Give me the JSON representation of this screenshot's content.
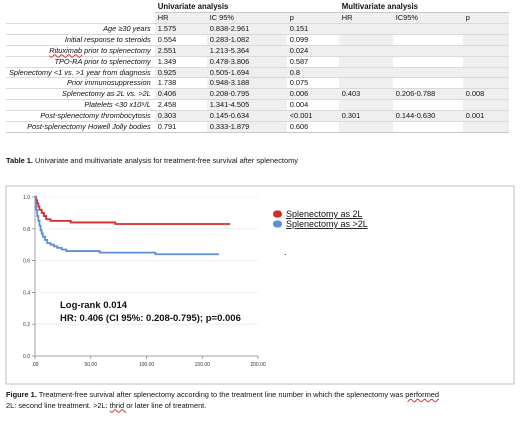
{
  "table": {
    "group_univariate": "Univariate analysis",
    "group_multivariate": "Multivariate analysis",
    "headers": [
      "HR",
      "IC 95%",
      "p",
      "HR",
      "IC95%",
      "p"
    ],
    "rows": [
      {
        "variable": "Age ≥30 years",
        "u_hr": "1.575",
        "u_ci": "0.838-2.961",
        "u_p": "0.151",
        "m_hr": "",
        "m_ci": "",
        "m_p": ""
      },
      {
        "variable": "Initial response to steroids",
        "u_hr": "0.554",
        "u_ci": "0.283-1.082",
        "u_p": "0.099",
        "m_hr": "",
        "m_ci": "",
        "m_p": ""
      },
      {
        "variable": "Rituximab prior to splenectomy",
        "u_hr": "2.551",
        "u_ci": "1.213-5.364",
        "u_p": "0.024",
        "m_hr": "",
        "m_ci": "",
        "m_p": ""
      },
      {
        "variable": "TPO-RA prior to splenectomy",
        "u_hr": "1.349",
        "u_ci": "0.478-3.806",
        "u_p": "0.587",
        "m_hr": "",
        "m_ci": "",
        "m_p": ""
      },
      {
        "variable": "Splenectomy <1 vs. >1 year from diagnosis",
        "u_hr": "0.925",
        "u_ci": "0.505-1.694",
        "u_p": "0.8",
        "m_hr": "",
        "m_ci": "",
        "m_p": ""
      },
      {
        "variable": "Prior immunosuppression",
        "u_hr": "1.738",
        "u_ci": "0.948-3.188",
        "u_p": "0.075",
        "m_hr": "",
        "m_ci": "",
        "m_p": ""
      },
      {
        "variable": "Splenectomy as 2L vs. >2L",
        "u_hr": "0.406",
        "u_ci": "0.208-0.795",
        "u_p": "0.006",
        "m_hr": "0.403",
        "m_ci": "0.206-0.788",
        "m_p": "0.008"
      },
      {
        "variable": "Platelets <30 x10⁹/L",
        "u_hr": "2.458",
        "u_ci": "1.341-4.505",
        "u_p": "0.004",
        "m_hr": "",
        "m_ci": "",
        "m_p": ""
      },
      {
        "variable": "Post-splenectomy thrombocytosis",
        "u_hr": "0.303",
        "u_ci": "0.145-0.634",
        "u_p": "<0.001",
        "m_hr": "0.301",
        "m_ci": "0.144-0.630",
        "m_p": "0.001"
      },
      {
        "variable": "Post-splenectomy Howell Jolly bodies",
        "u_hr": "0.791",
        "u_ci": "0.333-1.879",
        "u_p": "0.606",
        "m_hr": "",
        "m_ci": "",
        "m_p": ""
      }
    ],
    "caption_label": "Table 1.",
    "caption_text": " Univariate and multivariate analysis for treatment-free survival after splenectomy"
  },
  "chart_data": {
    "type": "line",
    "step": true,
    "xlim": [
      0,
      200
    ],
    "ylim": [
      0.0,
      1.0
    ],
    "xticks": [
      0,
      50,
      100,
      150,
      200
    ],
    "xtick_labels": [
      ".00",
      "50.00",
      "100.00",
      "150.00",
      "200.00"
    ],
    "yticks": [
      0.0,
      0.2,
      0.4,
      0.6,
      0.8,
      1.0
    ],
    "ytick_labels": [
      "0.0",
      "0.2",
      "0.4",
      "0.6",
      "0.8",
      "1.0"
    ],
    "legend_position": "right",
    "series": [
      {
        "name": "Splenectomy as 2L",
        "color": "#d62a2a",
        "points": [
          [
            0,
            1.0
          ],
          [
            1,
            0.98
          ],
          [
            2,
            0.96
          ],
          [
            3,
            0.94
          ],
          [
            4,
            0.92
          ],
          [
            6,
            0.9
          ],
          [
            8,
            0.88
          ],
          [
            10,
            0.86
          ],
          [
            14,
            0.85
          ],
          [
            30,
            0.85
          ],
          [
            32,
            0.84
          ],
          [
            70,
            0.84
          ],
          [
            72,
            0.83
          ],
          [
            175,
            0.83
          ]
        ]
      },
      {
        "name": "Splenectomy as >2L",
        "color": "#5b8fd6",
        "points": [
          [
            0,
            1.0
          ],
          [
            0.5,
            0.96
          ],
          [
            1,
            0.92
          ],
          [
            2,
            0.88
          ],
          [
            3,
            0.85
          ],
          [
            4,
            0.82
          ],
          [
            5,
            0.79
          ],
          [
            6,
            0.77
          ],
          [
            7,
            0.75
          ],
          [
            9,
            0.73
          ],
          [
            11,
            0.71
          ],
          [
            14,
            0.7
          ],
          [
            17,
            0.69
          ],
          [
            20,
            0.68
          ],
          [
            24,
            0.67
          ],
          [
            28,
            0.66
          ],
          [
            55,
            0.66
          ],
          [
            58,
            0.65
          ],
          [
            105,
            0.65
          ],
          [
            108,
            0.64
          ],
          [
            165,
            0.64
          ]
        ]
      }
    ],
    "annotations": {
      "logrank": "Log-rank 0.014",
      "hr": "HR: 0.406 (CI 95%: 0.208-0.795); p=0.006",
      "legend_dot": "."
    }
  },
  "figure": {
    "caption_label": "Figure 1.",
    "caption_line1_pre": " Treatment-free survival after splenectomy  according to the treatment line number in which the splenectomy was ",
    "caption_line1_ul": "performed",
    "caption_line2_pre": "2L: second line treatment. >2L: ",
    "caption_line2_ul": "thrid ",
    "caption_line2_post": "or later line of treatment."
  }
}
